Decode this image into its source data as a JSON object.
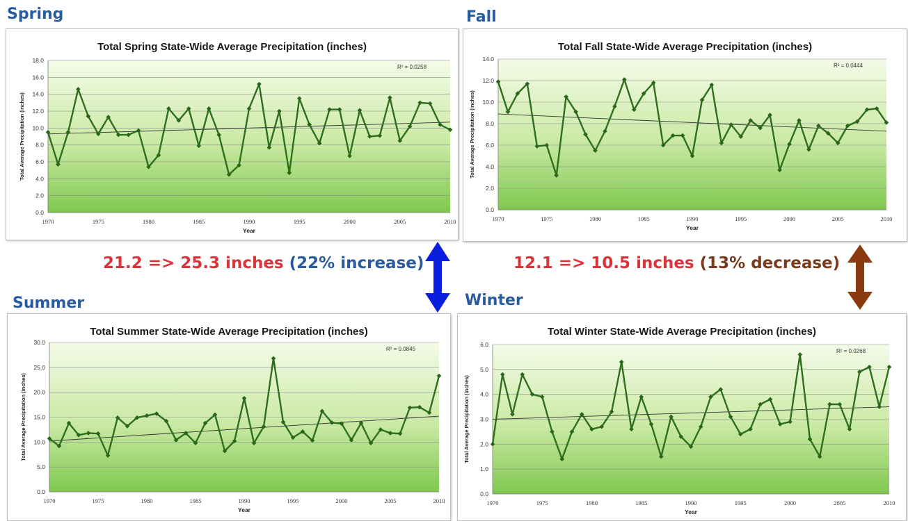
{
  "page": {
    "colors": {
      "season_label": "#2a5b9c",
      "red_text": "#d9343a",
      "blue_text": "#2a5b9c",
      "brown_text": "#7a3a1c",
      "blue_arrow": "#0a1ee0",
      "brown_arrow": "#8b3a10",
      "series_line": "#2e6e1e",
      "trend_line": "#333333"
    }
  },
  "labels": {
    "spring": "Spring",
    "fall": "Fall",
    "summer": "Summer",
    "winter": "Winter"
  },
  "spring_change": {
    "values": "21.2 => 25.3 inches",
    "pct": "(22% increase)"
  },
  "fall_change": {
    "values": "12.1 => 10.5 inches",
    "pct": "(13% decrease)"
  },
  "chart_data": [
    {
      "id": "spring",
      "type": "line",
      "title": "Total Spring State-Wide Average Precipitation (inches)",
      "xlabel": "Year",
      "ylabel": "Total Average Precipitation (inches)",
      "r2": "R² = 0.0258",
      "xlim": [
        1970,
        2010
      ],
      "ylim": [
        0,
        18
      ],
      "ystep": 2,
      "ydecimals": 1,
      "xticks": [
        1970,
        1975,
        1980,
        1985,
        1990,
        1995,
        2000,
        2005,
        2010
      ],
      "trend": [
        9.3,
        10.7
      ],
      "grid": true,
      "series": [
        {
          "x": [
            1970,
            1971,
            1972,
            1973,
            1974,
            1975,
            1976,
            1977,
            1978,
            1979,
            1980,
            1981,
            1982,
            1983,
            1984,
            1985,
            1986,
            1987,
            1988,
            1989,
            1990,
            1991,
            1992,
            1993,
            1994,
            1995,
            1996,
            1997,
            1998,
            1999,
            2000,
            2001,
            2002,
            2003,
            2004,
            2005,
            2006,
            2007,
            2008,
            2009,
            2010
          ],
          "values": [
            9.5,
            5.7,
            9.5,
            14.6,
            11.4,
            9.3,
            11.3,
            9.2,
            9.2,
            9.7,
            5.4,
            6.8,
            12.3,
            10.9,
            12.3,
            7.9,
            12.3,
            9.2,
            4.5,
            5.6,
            12.3,
            15.2,
            7.7,
            12.0,
            4.7,
            13.5,
            10.4,
            8.2,
            12.2,
            12.2,
            6.7,
            12.1,
            9.0,
            9.1,
            13.6,
            8.5,
            10.2,
            13.0,
            12.9,
            10.4,
            9.8
          ]
        }
      ]
    },
    {
      "id": "fall",
      "type": "line",
      "title": "Total Fall State-Wide Average Precipitation (inches)",
      "xlabel": "Year",
      "ylabel": "Total Average Precipitation (inches)",
      "r2": "R² = 0.0444",
      "xlim": [
        1970,
        2010
      ],
      "ylim": [
        0,
        14
      ],
      "ystep": 2,
      "ydecimals": 1,
      "xticks": [
        1970,
        1975,
        1980,
        1985,
        1990,
        1995,
        2000,
        2005,
        2010
      ],
      "trend": [
        8.9,
        7.3
      ],
      "grid": true,
      "series": [
        {
          "x": [
            1970,
            1971,
            1972,
            1973,
            1974,
            1975,
            1976,
            1977,
            1978,
            1979,
            1980,
            1981,
            1982,
            1983,
            1984,
            1985,
            1986,
            1987,
            1988,
            1989,
            1990,
            1991,
            1992,
            1993,
            1994,
            1995,
            1996,
            1997,
            1998,
            1999,
            2000,
            2001,
            2002,
            2003,
            2004,
            2005,
            2006,
            2007,
            2008,
            2009,
            2010
          ],
          "values": [
            11.9,
            9.1,
            10.8,
            11.7,
            5.9,
            6.0,
            3.2,
            10.5,
            9.1,
            7.0,
            5.5,
            7.3,
            9.6,
            12.1,
            9.3,
            10.8,
            11.8,
            6.0,
            6.9,
            6.9,
            5.0,
            10.2,
            11.6,
            6.2,
            7.9,
            6.8,
            8.3,
            7.6,
            8.8,
            3.7,
            6.1,
            8.3,
            5.6,
            7.8,
            7.1,
            6.2,
            7.8,
            8.2,
            9.3,
            9.4,
            8.1
          ]
        }
      ]
    },
    {
      "id": "summer",
      "type": "line",
      "title": "Total Summer State-Wide Average Precipitation (inches)",
      "xlabel": "Year",
      "ylabel": "Total Average Precipitation (inches)",
      "r2": "R² = 0.0845",
      "xlim": [
        1970,
        2010
      ],
      "ylim": [
        0,
        30
      ],
      "ystep": 5,
      "ydecimals": 1,
      "xticks": [
        1970,
        1975,
        1980,
        1985,
        1990,
        1995,
        2000,
        2005,
        2010
      ],
      "trend": [
        10.2,
        15.2
      ],
      "grid": true,
      "series": [
        {
          "x": [
            1970,
            1971,
            1972,
            1973,
            1974,
            1975,
            1976,
            1977,
            1978,
            1979,
            1980,
            1981,
            1982,
            1983,
            1984,
            1985,
            1986,
            1987,
            1988,
            1989,
            1990,
            1991,
            1992,
            1993,
            1994,
            1995,
            1996,
            1997,
            1998,
            1999,
            2000,
            2001,
            2002,
            2003,
            2004,
            2005,
            2006,
            2007,
            2008,
            2009,
            2010
          ],
          "values": [
            10.7,
            9.2,
            13.8,
            11.4,
            11.8,
            11.7,
            7.3,
            14.9,
            13.2,
            14.9,
            15.3,
            15.7,
            14.2,
            10.4,
            11.8,
            9.8,
            13.8,
            15.5,
            8.2,
            10.2,
            18.8,
            9.8,
            13.1,
            26.8,
            14.0,
            10.9,
            12.1,
            10.3,
            16.2,
            13.9,
            13.7,
            10.4,
            13.8,
            9.8,
            12.5,
            11.8,
            11.7,
            16.9,
            17.0,
            15.9,
            23.3
          ]
        }
      ]
    },
    {
      "id": "winter",
      "type": "line",
      "title": "Total Winter State-Wide Average Precipitation (inches)",
      "xlabel": "Year",
      "ylabel": "Total Average Precipitation (inches)",
      "r2": "R² = 0.0268",
      "xlim": [
        1970,
        2010
      ],
      "ylim": [
        0,
        6
      ],
      "ystep": 1,
      "ydecimals": 1,
      "xticks": [
        1970,
        1975,
        1980,
        1985,
        1990,
        1995,
        2000,
        2005,
        2010
      ],
      "trend": [
        3.0,
        3.5
      ],
      "grid": true,
      "series": [
        {
          "x": [
            1970,
            1971,
            1972,
            1973,
            1974,
            1975,
            1976,
            1977,
            1978,
            1979,
            1980,
            1981,
            1982,
            1983,
            1984,
            1985,
            1986,
            1987,
            1988,
            1989,
            1990,
            1991,
            1992,
            1993,
            1994,
            1995,
            1996,
            1997,
            1998,
            1999,
            2000,
            2001,
            2002,
            2003,
            2004,
            2005,
            2006,
            2007,
            2008,
            2009,
            2010
          ],
          "values": [
            2.0,
            4.8,
            3.2,
            4.8,
            4.0,
            3.9,
            2.5,
            1.4,
            2.5,
            3.2,
            2.6,
            2.7,
            3.3,
            5.3,
            2.6,
            3.9,
            2.8,
            1.5,
            3.1,
            2.3,
            1.9,
            2.7,
            3.9,
            4.2,
            3.1,
            2.4,
            2.6,
            3.6,
            3.8,
            2.8,
            2.9,
            5.6,
            2.2,
            1.5,
            3.6,
            3.6,
            2.6,
            4.9,
            5.1,
            3.5,
            5.1
          ]
        }
      ]
    }
  ]
}
